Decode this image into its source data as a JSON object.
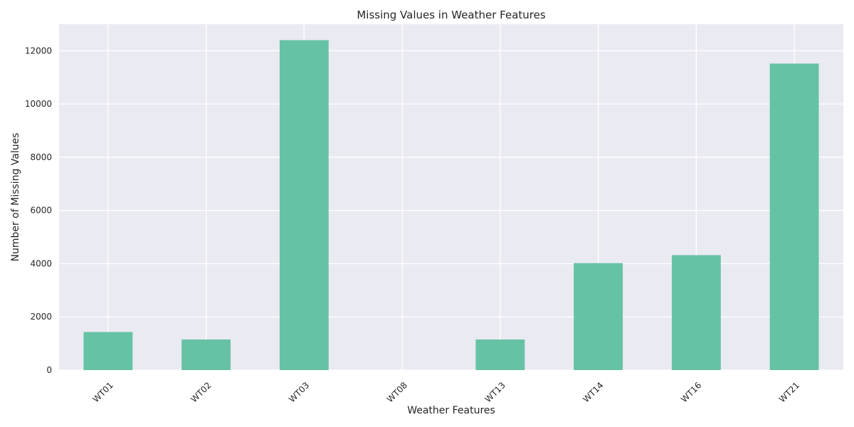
{
  "chart_data": {
    "type": "bar",
    "title": "Missing Values in Weather Features",
    "xlabel": "Weather Features",
    "ylabel": "Number of Missing Values",
    "categories": [
      "WT01",
      "WT02",
      "WT03",
      "WT08",
      "WT13",
      "WT14",
      "WT16",
      "WT21"
    ],
    "values": [
      1430,
      1150,
      12400,
      0,
      1150,
      4020,
      4320,
      11520
    ],
    "ylim": [
      0,
      13000
    ],
    "yticks": [
      0,
      2000,
      4000,
      6000,
      8000,
      10000,
      12000
    ],
    "grid": true,
    "bar_color": "#66c2a5",
    "background_color": "#eaeaf2"
  }
}
